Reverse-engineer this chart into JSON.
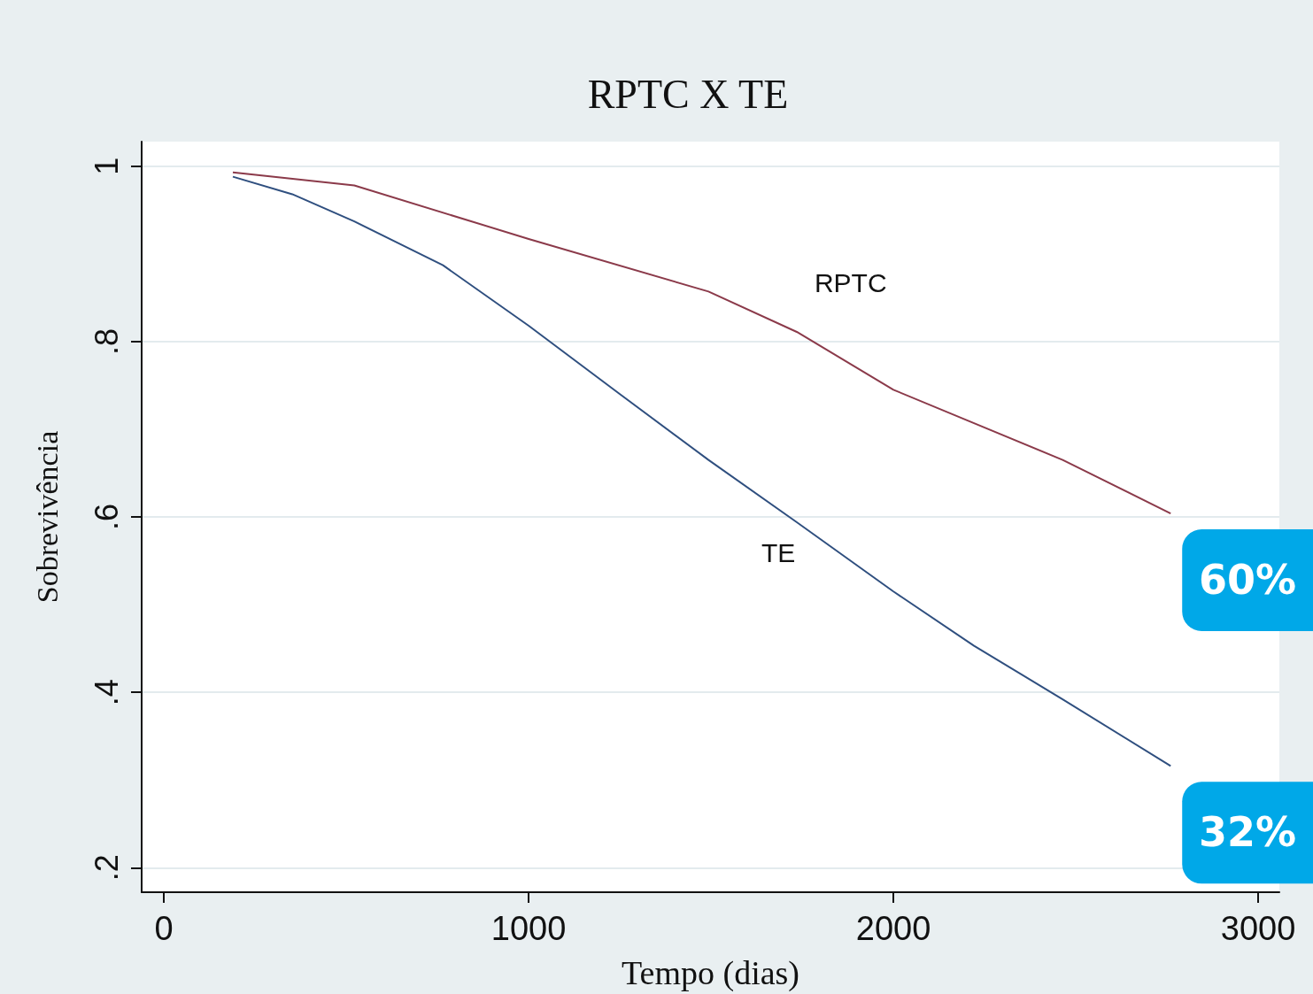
{
  "chart_data": {
    "type": "line",
    "title": "RPTC X TE",
    "xlabel": "Tempo (dias)",
    "ylabel": "Sobrevivência",
    "xlim": [
      -61,
      3058
    ],
    "xticks": [
      0,
      1000,
      2000,
      3000
    ],
    "ylim": [
      0.172,
      1.028
    ],
    "yticks": [
      {
        "value": 0.2,
        "label": ".2"
      },
      {
        "value": 0.4,
        "label": ".4"
      },
      {
        "value": 0.6,
        "label": ".6"
      },
      {
        "value": 0.8,
        "label": ".8"
      },
      1
    ],
    "grid": "y",
    "marker": "none",
    "line_style": "solid",
    "series": [
      {
        "name": "RPTC",
        "color": "#8b3a4a",
        "x": [
          189,
          522,
          1000,
          1493,
          1735,
          2000,
          2464,
          2760
        ],
        "values": [
          0.993,
          0.978,
          0.917,
          0.857,
          0.811,
          0.745,
          0.665,
          0.604
        ]
      },
      {
        "name": "TE",
        "color": "#2f4f7f",
        "x": [
          189,
          352,
          522,
          765,
          1000,
          1250,
          1493,
          1735,
          2000,
          2221,
          2464,
          2760
        ],
        "values": [
          0.988,
          0.968,
          0.937,
          0.887,
          0.818,
          0.74,
          0.665,
          0.594,
          0.515,
          0.453,
          0.392,
          0.316
        ]
      }
    ],
    "annotations": [
      {
        "text": "60%",
        "x": 2760,
        "y": 0.604
      },
      {
        "text": "32%",
        "x": 2760,
        "y": 0.316
      }
    ]
  }
}
